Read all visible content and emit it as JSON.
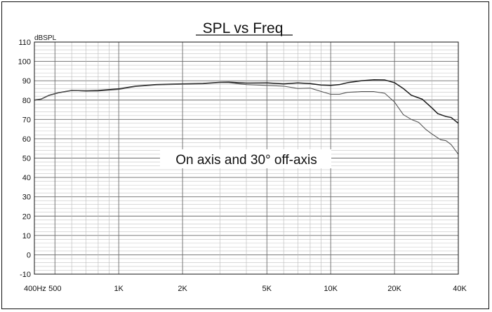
{
  "chart_data": {
    "type": "line",
    "title": "SPL vs Freq",
    "ylabel": "dBSPL",
    "annotation": "On axis and 30° off-axis",
    "x_scale": "log",
    "xlim": [
      400,
      40000
    ],
    "ylim": [
      -10,
      110
    ],
    "grid": true,
    "x_tick_labels": [
      {
        "value": 400,
        "label": "400Hz"
      },
      {
        "value": 500,
        "label": "500"
      },
      {
        "value": 1000,
        "label": "1K"
      },
      {
        "value": 2000,
        "label": "2K"
      },
      {
        "value": 5000,
        "label": "5K"
      },
      {
        "value": 10000,
        "label": "10K"
      },
      {
        "value": 20000,
        "label": "20K"
      },
      {
        "value": 40000,
        "label": "40K"
      }
    ],
    "y_ticks": [
      110,
      100,
      90,
      80,
      70,
      60,
      50,
      40,
      30,
      20,
      10,
      0,
      -10
    ],
    "series": [
      {
        "color": "#1a1a1a",
        "points": [
          [
            400,
            80
          ],
          [
            430,
            80.5
          ],
          [
            470,
            82.5
          ],
          [
            520,
            83.8
          ],
          [
            600,
            85
          ],
          [
            700,
            84.8
          ],
          [
            800,
            85
          ],
          [
            1000,
            85.8
          ],
          [
            1200,
            87.2
          ],
          [
            1500,
            88
          ],
          [
            2000,
            88.4
          ],
          [
            2500,
            88.6
          ],
          [
            3000,
            89.2
          ],
          [
            3300,
            89.3
          ],
          [
            4000,
            88.8
          ],
          [
            5000,
            88.9
          ],
          [
            6000,
            88.4
          ],
          [
            7000,
            88.9
          ],
          [
            8000,
            88.5
          ],
          [
            9000,
            87.8
          ],
          [
            10000,
            87.6
          ],
          [
            11000,
            88
          ],
          [
            12000,
            89
          ],
          [
            14000,
            90
          ],
          [
            16000,
            90.5
          ],
          [
            18000,
            90.4
          ],
          [
            20000,
            89
          ],
          [
            22000,
            86
          ],
          [
            24000,
            82.5
          ],
          [
            27000,
            80.5
          ],
          [
            30000,
            76
          ],
          [
            32000,
            73
          ],
          [
            35000,
            71.5
          ],
          [
            37000,
            71
          ],
          [
            40000,
            68
          ]
        ]
      },
      {
        "color": "#555555",
        "points": [
          [
            400,
            80
          ],
          [
            430,
            80.5
          ],
          [
            470,
            82.5
          ],
          [
            520,
            83.8
          ],
          [
            600,
            85
          ],
          [
            700,
            84.6
          ],
          [
            800,
            84.7
          ],
          [
            1000,
            85.5
          ],
          [
            1200,
            87
          ],
          [
            1500,
            87.8
          ],
          [
            2000,
            88.2
          ],
          [
            2500,
            88.4
          ],
          [
            3000,
            89
          ],
          [
            3300,
            89
          ],
          [
            4000,
            88
          ],
          [
            5000,
            87.6
          ],
          [
            6000,
            87.2
          ],
          [
            7000,
            86
          ],
          [
            8000,
            86.2
          ],
          [
            9000,
            84.5
          ],
          [
            10000,
            83
          ],
          [
            11000,
            83
          ],
          [
            12000,
            84
          ],
          [
            14000,
            84.4
          ],
          [
            16000,
            84.4
          ],
          [
            18000,
            83.5
          ],
          [
            20000,
            79
          ],
          [
            22000,
            72.5
          ],
          [
            24000,
            70
          ],
          [
            26000,
            68.5
          ],
          [
            28000,
            65
          ],
          [
            30000,
            62.5
          ],
          [
            33000,
            59.5
          ],
          [
            35000,
            59
          ],
          [
            37000,
            57
          ],
          [
            40000,
            52
          ]
        ]
      }
    ]
  }
}
